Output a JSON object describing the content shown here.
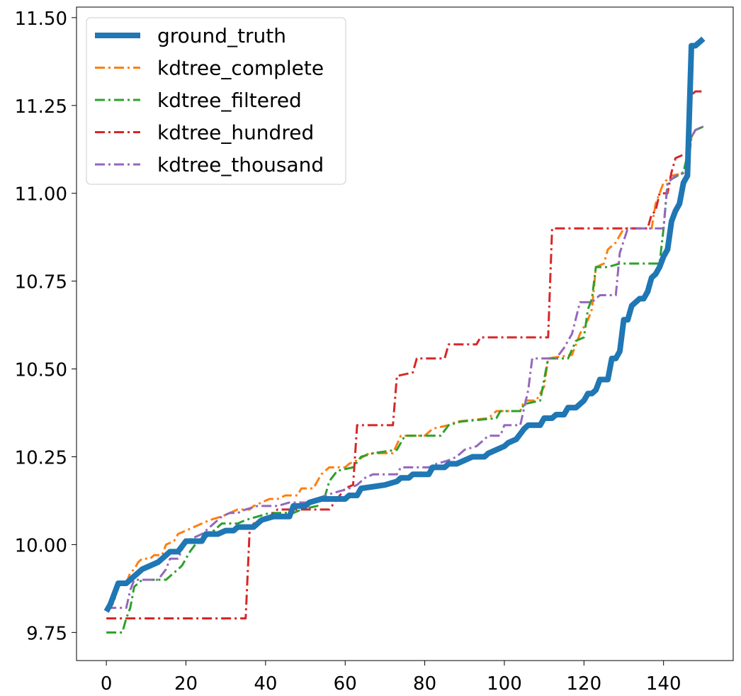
{
  "chart_data": {
    "type": "line",
    "title": "",
    "xlabel": "",
    "ylabel": "",
    "xlim": [
      -7.5,
      157.5
    ],
    "ylim": [
      9.67,
      11.53
    ],
    "xticks": [
      0,
      20,
      40,
      60,
      80,
      100,
      120,
      140
    ],
    "yticks": [
      9.75,
      10.0,
      10.25,
      10.5,
      10.75,
      11.0,
      11.25,
      11.5
    ],
    "xtick_labels": [
      "0",
      "20",
      "40",
      "60",
      "80",
      "100",
      "120",
      "140"
    ],
    "ytick_labels": [
      "9.75",
      "10.00",
      "10.25",
      "10.50",
      "10.75",
      "11.00",
      "11.25",
      "11.50"
    ],
    "grid": false,
    "legend_position": "top-left",
    "series": [
      {
        "name": "ground_truth",
        "color": "#1f77b4",
        "style": "solid",
        "points": [
          [
            0,
            9.81
          ],
          [
            1,
            9.83
          ],
          [
            2,
            9.86
          ],
          [
            3,
            9.89
          ],
          [
            5,
            9.89
          ],
          [
            6,
            9.9
          ],
          [
            7,
            9.91
          ],
          [
            8,
            9.92
          ],
          [
            9,
            9.93
          ],
          [
            11,
            9.94
          ],
          [
            13,
            9.95
          ],
          [
            14,
            9.96
          ],
          [
            16,
            9.98
          ],
          [
            18,
            9.98
          ],
          [
            20,
            10.01
          ],
          [
            24,
            10.01
          ],
          [
            25,
            10.03
          ],
          [
            28,
            10.03
          ],
          [
            30,
            10.04
          ],
          [
            32,
            10.04
          ],
          [
            33,
            10.05
          ],
          [
            37,
            10.05
          ],
          [
            38,
            10.06
          ],
          [
            39,
            10.07
          ],
          [
            42,
            10.08
          ],
          [
            46,
            10.08
          ],
          [
            47,
            10.11
          ],
          [
            50,
            10.11
          ],
          [
            51,
            10.12
          ],
          [
            54,
            10.13
          ],
          [
            60,
            10.13
          ],
          [
            61,
            10.14
          ],
          [
            63,
            10.14
          ],
          [
            64,
            10.16
          ],
          [
            70,
            10.17
          ],
          [
            73,
            10.18
          ],
          [
            74,
            10.19
          ],
          [
            76,
            10.19
          ],
          [
            77,
            10.2
          ],
          [
            81,
            10.2
          ],
          [
            82,
            10.22
          ],
          [
            85,
            10.22
          ],
          [
            86,
            10.23
          ],
          [
            88,
            10.23
          ],
          [
            90,
            10.24
          ],
          [
            92,
            10.25
          ],
          [
            95,
            10.25
          ],
          [
            96,
            10.26
          ],
          [
            98,
            10.27
          ],
          [
            100,
            10.28
          ],
          [
            101,
            10.29
          ],
          [
            103,
            10.3
          ],
          [
            105,
            10.33
          ],
          [
            106,
            10.34
          ],
          [
            109,
            10.34
          ],
          [
            110,
            10.36
          ],
          [
            112,
            10.36
          ],
          [
            113,
            10.37
          ],
          [
            115,
            10.37
          ],
          [
            116,
            10.39
          ],
          [
            118,
            10.39
          ],
          [
            120,
            10.41
          ],
          [
            121,
            10.43
          ],
          [
            122,
            10.43
          ],
          [
            123,
            10.44
          ],
          [
            124,
            10.47
          ],
          [
            126,
            10.47
          ],
          [
            127,
            10.53
          ],
          [
            128,
            10.53
          ],
          [
            129,
            10.55
          ],
          [
            130,
            10.64
          ],
          [
            131,
            10.64
          ],
          [
            132,
            10.68
          ],
          [
            133,
            10.69
          ],
          [
            134,
            10.7
          ],
          [
            135,
            10.7
          ],
          [
            136,
            10.72
          ],
          [
            137,
            10.76
          ],
          [
            138,
            10.77
          ],
          [
            139,
            10.79
          ],
          [
            140,
            10.82
          ],
          [
            141,
            10.84
          ],
          [
            142,
            10.92
          ],
          [
            143,
            10.95
          ],
          [
            144,
            10.97
          ],
          [
            145,
            11.03
          ],
          [
            146,
            11.05
          ],
          [
            147,
            11.42
          ],
          [
            148,
            11.42
          ],
          [
            149,
            11.43
          ],
          [
            150,
            11.44
          ]
        ]
      },
      {
        "name": "kdtree_complete",
        "color": "#ff7f0e",
        "style": "dashdot",
        "points": [
          [
            0,
            9.82
          ],
          [
            1,
            9.82
          ],
          [
            2,
            9.84
          ],
          [
            3,
            9.89
          ],
          [
            5,
            9.89
          ],
          [
            6,
            9.92
          ],
          [
            7,
            9.93
          ],
          [
            8,
            9.95
          ],
          [
            9,
            9.96
          ],
          [
            11,
            9.96
          ],
          [
            12,
            9.97
          ],
          [
            14,
            9.97
          ],
          [
            15,
            10.0
          ],
          [
            17,
            10.01
          ],
          [
            18,
            10.03
          ],
          [
            20,
            10.04
          ],
          [
            22,
            10.05
          ],
          [
            24,
            10.06
          ],
          [
            26,
            10.07
          ],
          [
            29,
            10.08
          ],
          [
            31,
            10.09
          ],
          [
            33,
            10.1
          ],
          [
            36,
            10.1
          ],
          [
            37,
            10.11
          ],
          [
            39,
            10.12
          ],
          [
            41,
            10.13
          ],
          [
            43,
            10.13
          ],
          [
            45,
            10.14
          ],
          [
            48,
            10.14
          ],
          [
            49,
            10.16
          ],
          [
            52,
            10.16
          ],
          [
            53,
            10.18
          ],
          [
            54,
            10.2
          ],
          [
            56,
            10.22
          ],
          [
            60,
            10.22
          ],
          [
            61,
            10.23
          ],
          [
            63,
            10.24
          ],
          [
            66,
            10.26
          ],
          [
            72,
            10.26
          ],
          [
            74,
            10.31
          ],
          [
            80,
            10.31
          ],
          [
            82,
            10.33
          ],
          [
            86,
            10.34
          ],
          [
            88,
            10.35
          ],
          [
            96,
            10.36
          ],
          [
            98,
            10.38
          ],
          [
            104,
            10.38
          ],
          [
            105,
            10.41
          ],
          [
            108,
            10.41
          ],
          [
            110,
            10.45
          ],
          [
            111,
            10.53
          ],
          [
            117,
            10.54
          ],
          [
            119,
            10.6
          ],
          [
            121,
            10.64
          ],
          [
            122,
            10.67
          ],
          [
            123,
            10.79
          ],
          [
            125,
            10.8
          ],
          [
            126,
            10.84
          ],
          [
            128,
            10.86
          ],
          [
            130,
            10.9
          ],
          [
            137,
            10.9
          ],
          [
            138,
            10.97
          ],
          [
            140,
            11.03
          ],
          [
            142,
            11.05
          ],
          [
            146,
            11.06
          ],
          [
            147,
            11.16
          ],
          [
            148,
            11.18
          ],
          [
            150,
            11.19
          ]
        ]
      },
      {
        "name": "kdtree_filtered",
        "color": "#2ca02c",
        "style": "dashdot",
        "points": [
          [
            0,
            9.75
          ],
          [
            4,
            9.75
          ],
          [
            5,
            9.79
          ],
          [
            6,
            9.82
          ],
          [
            7,
            9.88
          ],
          [
            9,
            9.9
          ],
          [
            15,
            9.9
          ],
          [
            17,
            9.92
          ],
          [
            19,
            9.94
          ],
          [
            21,
            9.98
          ],
          [
            23,
            10.01
          ],
          [
            25,
            10.02
          ],
          [
            27,
            10.04
          ],
          [
            29,
            10.06
          ],
          [
            33,
            10.06
          ],
          [
            35,
            10.07
          ],
          [
            38,
            10.08
          ],
          [
            41,
            10.09
          ],
          [
            47,
            10.09
          ],
          [
            49,
            10.1
          ],
          [
            53,
            10.11
          ],
          [
            54,
            10.13
          ],
          [
            55,
            10.14
          ],
          [
            56,
            10.18
          ],
          [
            58,
            10.21
          ],
          [
            62,
            10.22
          ],
          [
            64,
            10.25
          ],
          [
            67,
            10.26
          ],
          [
            73,
            10.27
          ],
          [
            75,
            10.31
          ],
          [
            84,
            10.31
          ],
          [
            86,
            10.34
          ],
          [
            89,
            10.35
          ],
          [
            98,
            10.36
          ],
          [
            99,
            10.38
          ],
          [
            104,
            10.38
          ],
          [
            105,
            10.4
          ],
          [
            109,
            10.41
          ],
          [
            111,
            10.53
          ],
          [
            116,
            10.53
          ],
          [
            118,
            10.58
          ],
          [
            120,
            10.59
          ],
          [
            121,
            10.67
          ],
          [
            122,
            10.7
          ],
          [
            123,
            10.79
          ],
          [
            126,
            10.79
          ],
          [
            129,
            10.8
          ],
          [
            139,
            10.8
          ],
          [
            140,
            10.9
          ],
          [
            141,
            11.03
          ],
          [
            142,
            11.04
          ],
          [
            145,
            11.06
          ],
          [
            147,
            11.16
          ],
          [
            148,
            11.18
          ],
          [
            150,
            11.19
          ]
        ]
      },
      {
        "name": "kdtree_hundred",
        "color": "#d62728",
        "style": "dashdot",
        "points": [
          [
            0,
            9.79
          ],
          [
            35,
            9.79
          ],
          [
            36,
            10.04
          ],
          [
            37,
            10.06
          ],
          [
            40,
            10.07
          ],
          [
            42,
            10.09
          ],
          [
            43,
            10.1
          ],
          [
            56,
            10.1
          ],
          [
            58,
            10.13
          ],
          [
            60,
            10.16
          ],
          [
            62,
            10.17
          ],
          [
            63,
            10.34
          ],
          [
            72,
            10.34
          ],
          [
            73,
            10.48
          ],
          [
            77,
            10.49
          ],
          [
            78,
            10.53
          ],
          [
            85,
            10.53
          ],
          [
            86,
            10.57
          ],
          [
            93,
            10.57
          ],
          [
            94,
            10.59
          ],
          [
            111,
            10.59
          ],
          [
            112,
            10.9
          ],
          [
            136,
            10.9
          ],
          [
            137,
            10.94
          ],
          [
            138,
            10.95
          ],
          [
            139,
            11.0
          ],
          [
            141,
            11.0
          ],
          [
            142,
            11.06
          ],
          [
            143,
            11.1
          ],
          [
            145,
            11.11
          ],
          [
            146,
            11.11
          ],
          [
            147,
            11.28
          ],
          [
            148,
            11.29
          ],
          [
            150,
            11.29
          ]
        ]
      },
      {
        "name": "kdtree_thousand",
        "color": "#9467bd",
        "style": "dashdot",
        "points": [
          [
            0,
            9.82
          ],
          [
            5,
            9.82
          ],
          [
            6,
            9.87
          ],
          [
            7,
            9.9
          ],
          [
            13,
            9.9
          ],
          [
            15,
            9.93
          ],
          [
            16,
            9.96
          ],
          [
            18,
            9.96
          ],
          [
            20,
            10.01
          ],
          [
            22,
            10.02
          ],
          [
            24,
            10.03
          ],
          [
            25,
            10.04
          ],
          [
            27,
            10.06
          ],
          [
            29,
            10.08
          ],
          [
            31,
            10.09
          ],
          [
            33,
            10.09
          ],
          [
            35,
            10.1
          ],
          [
            38,
            10.11
          ],
          [
            43,
            10.11
          ],
          [
            46,
            10.12
          ],
          [
            51,
            10.12
          ],
          [
            53,
            10.13
          ],
          [
            55,
            10.14
          ],
          [
            61,
            10.16
          ],
          [
            63,
            10.17
          ],
          [
            65,
            10.19
          ],
          [
            67,
            10.2
          ],
          [
            73,
            10.2
          ],
          [
            74,
            10.22
          ],
          [
            81,
            10.22
          ],
          [
            83,
            10.23
          ],
          [
            86,
            10.24
          ],
          [
            88,
            10.25
          ],
          [
            90,
            10.27
          ],
          [
            93,
            10.28
          ],
          [
            96,
            10.31
          ],
          [
            99,
            10.31
          ],
          [
            100,
            10.34
          ],
          [
            104,
            10.34
          ],
          [
            106,
            10.44
          ],
          [
            107,
            10.53
          ],
          [
            113,
            10.53
          ],
          [
            115,
            10.56
          ],
          [
            117,
            10.6
          ],
          [
            119,
            10.69
          ],
          [
            122,
            10.69
          ],
          [
            124,
            10.71
          ],
          [
            128,
            10.71
          ],
          [
            129,
            10.83
          ],
          [
            131,
            10.9
          ],
          [
            140,
            10.9
          ],
          [
            141,
            11.03
          ],
          [
            143,
            11.05
          ],
          [
            146,
            11.06
          ],
          [
            147,
            11.16
          ],
          [
            148,
            11.18
          ],
          [
            150,
            11.19
          ]
        ]
      }
    ]
  }
}
